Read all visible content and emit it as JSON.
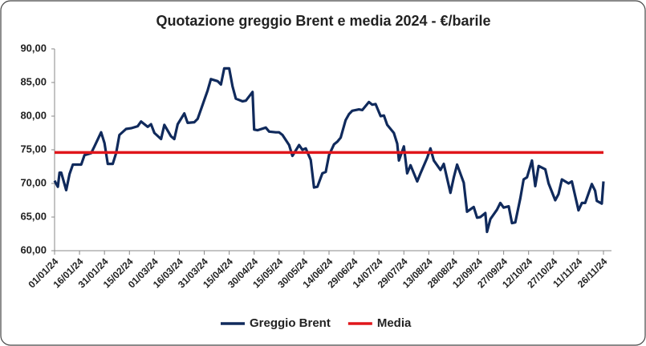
{
  "chart_data": {
    "type": "line",
    "title": "Quotazione greggio Brent e media 2024 - €/barile",
    "x": [
      "01/01/24",
      "03/01/24",
      "04/01/24",
      "05/01/24",
      "08/01/24",
      "10/01/24",
      "12/01/24",
      "17/01/24",
      "19/01/24",
      "23/01/24",
      "25/01/24",
      "29/01/24",
      "31/01/24",
      "02/02/24",
      "05/02/24",
      "07/02/24",
      "09/02/24",
      "13/02/24",
      "16/02/24",
      "20/02/24",
      "22/02/24",
      "26/02/24",
      "28/02/24",
      "01/03/24",
      "05/03/24",
      "07/03/24",
      "11/03/24",
      "13/03/24",
      "15/03/24",
      "19/03/24",
      "21/03/24",
      "25/03/24",
      "27/03/24",
      "02/04/24",
      "04/04/24",
      "08/04/24",
      "10/04/24",
      "12/04/24",
      "15/04/24",
      "17/04/24",
      "19/04/24",
      "23/04/24",
      "25/04/24",
      "29/04/24",
      "30/04/24",
      "02/05/24",
      "07/05/24",
      "09/05/24",
      "13/05/24",
      "15/05/24",
      "17/05/24",
      "21/05/24",
      "23/05/24",
      "27/05/24",
      "29/05/24",
      "31/05/24",
      "03/06/24",
      "05/06/24",
      "07/06/24",
      "10/06/24",
      "12/06/24",
      "14/06/24",
      "17/06/24",
      "19/06/24",
      "21/06/24",
      "24/06/24",
      "26/06/24",
      "28/06/24",
      "02/07/24",
      "04/07/24",
      "08/07/24",
      "10/07/24",
      "12/07/24",
      "15/07/24",
      "17/07/24",
      "19/07/24",
      "23/07/24",
      "25/07/24",
      "26/07/24",
      "29/07/24",
      "31/07/24",
      "02/08/24",
      "06/08/24",
      "08/08/24",
      "12/08/24",
      "14/08/24",
      "16/08/24",
      "20/08/24",
      "22/08/24",
      "26/08/24",
      "28/08/24",
      "30/08/24",
      "03/09/24",
      "05/09/24",
      "09/09/24",
      "11/09/24",
      "13/09/24",
      "16/09/24",
      "17/09/24",
      "19/09/24",
      "23/09/24",
      "25/09/24",
      "27/09/24",
      "30/09/24",
      "02/10/24",
      "04/10/24",
      "07/10/24",
      "09/10/24",
      "11/10/24",
      "14/10/24",
      "16/10/24",
      "18/10/24",
      "22/10/24",
      "24/10/24",
      "28/10/24",
      "30/10/24",
      "01/11/24",
      "05/11/24",
      "07/11/24",
      "11/11/24",
      "13/11/24",
      "15/11/24",
      "19/11/24",
      "21/11/24",
      "22/11/24",
      "25/11/24",
      "26/11/24"
    ],
    "series": [
      {
        "name": "Greggio Brent",
        "color": "#102a5c",
        "values": [
          70.4,
          69.5,
          71.6,
          71.6,
          69.0,
          71.4,
          72.8,
          72.8,
          74.2,
          74.5,
          75.5,
          77.6,
          76.0,
          72.9,
          72.9,
          74.5,
          77.2,
          78.1,
          78.2,
          78.5,
          79.2,
          78.4,
          78.8,
          77.5,
          76.6,
          78.7,
          77.0,
          76.6,
          78.8,
          80.4,
          79.0,
          79.1,
          79.6,
          83.8,
          85.5,
          85.2,
          84.7,
          87.1,
          87.1,
          84.4,
          82.6,
          82.2,
          82.3,
          83.6,
          78.0,
          77.9,
          78.3,
          77.7,
          77.6,
          77.6,
          77.2,
          75.7,
          74.1,
          75.7,
          75.0,
          75.2,
          73.5,
          69.4,
          69.5,
          71.5,
          71.7,
          74.2,
          75.8,
          76.2,
          76.8,
          79.4,
          80.3,
          80.8,
          81.0,
          80.9,
          82.1,
          81.7,
          81.8,
          80.0,
          80.1,
          78.7,
          77.5,
          75.9,
          73.4,
          75.5,
          71.5,
          72.7,
          70.3,
          71.5,
          73.8,
          75.2,
          73.4,
          72.0,
          72.9,
          68.6,
          70.9,
          72.8,
          70.1,
          65.8,
          66.5,
          64.9,
          65.0,
          65.6,
          62.8,
          64.7,
          66.1,
          67.1,
          66.4,
          66.6,
          64.1,
          64.2,
          67.8,
          70.6,
          70.9,
          73.4,
          69.6,
          72.6,
          72.1,
          70.0,
          67.5,
          68.4,
          70.6,
          70.0,
          70.3,
          66.0,
          67.1,
          67.1,
          69.9,
          68.9,
          67.4,
          67.0,
          70.3
        ]
      }
    ],
    "mean_line": {
      "name": "Media",
      "color": "#e0161b",
      "value": 74.6
    },
    "xlim": [
      "01/01/24",
      "26/11/24"
    ],
    "xticks": [
      "01/01/24",
      "16/01/24",
      "31/01/24",
      "15/02/24",
      "01/03/24",
      "16/03/24",
      "31/03/24",
      "15/04/24",
      "30/04/24",
      "15/05/24",
      "30/05/24",
      "14/06/24",
      "29/06/24",
      "14/07/24",
      "29/07/24",
      "13/08/24",
      "28/08/24",
      "12/09/24",
      "27/09/24",
      "12/10/24",
      "27/10/24",
      "11/11/24",
      "26/11/24"
    ],
    "ylim": [
      60,
      90
    ],
    "yticks": [
      {
        "value": 60,
        "label": "60,00"
      },
      {
        "value": 65,
        "label": "65,00"
      },
      {
        "value": 70,
        "label": "70,00"
      },
      {
        "value": 75,
        "label": "75,00"
      },
      {
        "value": 80,
        "label": "80,00"
      },
      {
        "value": 85,
        "label": "85,00"
      },
      {
        "value": 90,
        "label": "90,00"
      }
    ],
    "grid": false
  }
}
